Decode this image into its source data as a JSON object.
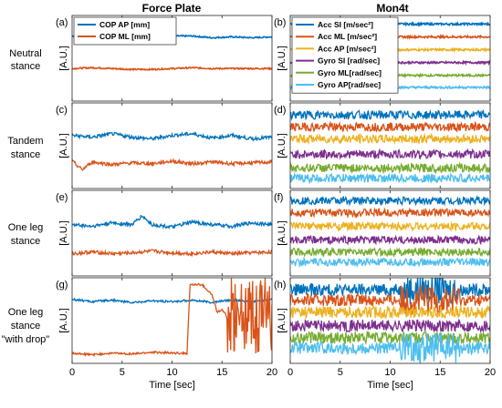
{
  "figure": {
    "col_titles": [
      "Force Plate",
      "Mon4t"
    ],
    "row_labels": [
      [
        "Neutral",
        "stance"
      ],
      [
        "Tandem",
        "stance"
      ],
      [
        "One leg",
        "stance"
      ],
      [
        "One leg",
        "stance",
        "\"with drop\""
      ]
    ],
    "panel_letters": [
      "(a)",
      "(b)",
      "(c)",
      "(d)",
      "(e)",
      "(f)",
      "(g)",
      "(h)"
    ],
    "ylabel": "[A.U.]",
    "xlabel": "Time [sec]",
    "xticks": [
      "0",
      "5",
      "10",
      "15",
      "20"
    ]
  },
  "colors": {
    "blue": "#0072BD",
    "orange": "#D95319",
    "yellow": "#EDB120",
    "purple": "#7E2F8E",
    "green": "#77AC30",
    "cyan": "#4DBEEE"
  },
  "chart_data": [
    {
      "type": "line",
      "panel": "(a)",
      "xlim": [
        0,
        20
      ],
      "xlabel": "",
      "ylabel": "[A.U.]",
      "legend_position": "top-left",
      "series": [
        {
          "name": "COP AP [mm]",
          "color": "#0072BD",
          "x": [
            0,
            2,
            4,
            6,
            8,
            10,
            12,
            14,
            16,
            18,
            20
          ],
          "y": [
            0.76,
            0.75,
            0.76,
            0.74,
            0.75,
            0.76,
            0.76,
            0.74,
            0.75,
            0.74,
            0.75
          ]
        },
        {
          "name": "COP ML [mm]",
          "color": "#D95319",
          "x": [
            0,
            2,
            4,
            6,
            8,
            10,
            12,
            14,
            16,
            18,
            20
          ],
          "y": [
            0.38,
            0.39,
            0.38,
            0.37,
            0.37,
            0.38,
            0.39,
            0.38,
            0.38,
            0.38,
            0.38
          ]
        }
      ]
    },
    {
      "type": "line",
      "panel": "(b)",
      "xlim": [
        0,
        20
      ],
      "xlabel": "",
      "ylabel": "[A.U.]",
      "legend_position": "top-left",
      "series": [
        {
          "name": "Acc SI [m/sec²]",
          "color": "#0072BD",
          "x": [
            0,
            20
          ],
          "y": [
            0.9,
            0.9
          ]
        },
        {
          "name": "Acc ML [m/sec²]",
          "color": "#D95319",
          "x": [
            0,
            20
          ],
          "y": [
            0.75,
            0.75
          ]
        },
        {
          "name": "Acc AP [m/sec²]",
          "color": "#EDB120",
          "x": [
            0,
            20
          ],
          "y": [
            0.6,
            0.6
          ]
        },
        {
          "name": "Gyro SI [rad/sec]",
          "color": "#7E2F8E",
          "x": [
            0,
            20
          ],
          "y": [
            0.45,
            0.45
          ]
        },
        {
          "name": "Gyro ML[rad/sec]",
          "color": "#77AC30",
          "x": [
            0,
            20
          ],
          "y": [
            0.3,
            0.3
          ]
        },
        {
          "name": "Gyro AP[rad/sec]",
          "color": "#4DBEEE",
          "x": [
            0,
            20
          ],
          "y": [
            0.16,
            0.16
          ]
        }
      ]
    },
    {
      "type": "line",
      "panel": "(c)",
      "xlim": [
        0,
        20
      ],
      "xlabel": "",
      "ylabel": "[A.U.]",
      "series": [
        {
          "color": "#0072BD",
          "x": [
            0,
            2,
            4,
            6,
            8,
            10,
            12,
            14,
            16,
            18,
            20
          ],
          "y": [
            0.62,
            0.6,
            0.64,
            0.6,
            0.58,
            0.62,
            0.64,
            0.59,
            0.62,
            0.58,
            0.6
          ]
        },
        {
          "color": "#D95319",
          "x": [
            0,
            1,
            2,
            4,
            6,
            8,
            10,
            12,
            14,
            16,
            18,
            20
          ],
          "y": [
            0.32,
            0.22,
            0.31,
            0.28,
            0.3,
            0.29,
            0.32,
            0.29,
            0.31,
            0.29,
            0.3,
            0.31
          ]
        }
      ]
    },
    {
      "type": "line",
      "panel": "(d)",
      "xlim": [
        0,
        20
      ],
      "xlabel": "",
      "ylabel": "[A.U.]",
      "series": [
        {
          "color": "#0072BD",
          "x": [
            0,
            20
          ],
          "y": [
            0.86,
            0.86
          ]
        },
        {
          "color": "#D95319",
          "x": [
            0,
            20
          ],
          "y": [
            0.72,
            0.72
          ]
        },
        {
          "color": "#EDB120",
          "x": [
            0,
            20
          ],
          "y": [
            0.58,
            0.58
          ]
        },
        {
          "color": "#7E2F8E",
          "x": [
            0,
            20
          ],
          "y": [
            0.4,
            0.4
          ]
        },
        {
          "color": "#77AC30",
          "x": [
            0,
            20
          ],
          "y": [
            0.24,
            0.24
          ]
        },
        {
          "color": "#4DBEEE",
          "x": [
            0,
            20
          ],
          "y": [
            0.12,
            0.12
          ]
        }
      ]
    },
    {
      "type": "line",
      "panel": "(e)",
      "xlim": [
        0,
        20
      ],
      "xlabel": "",
      "ylabel": "[A.U.]",
      "series": [
        {
          "color": "#0072BD",
          "x": [
            0,
            2,
            4,
            6,
            7,
            8,
            10,
            12,
            14,
            16,
            18,
            20
          ],
          "y": [
            0.6,
            0.58,
            0.62,
            0.6,
            0.7,
            0.6,
            0.57,
            0.63,
            0.6,
            0.58,
            0.62,
            0.6
          ]
        },
        {
          "color": "#D95319",
          "x": [
            0,
            2,
            4,
            6,
            8,
            10,
            12,
            14,
            16,
            18,
            20
          ],
          "y": [
            0.26,
            0.28,
            0.26,
            0.27,
            0.29,
            0.27,
            0.26,
            0.28,
            0.26,
            0.27,
            0.28
          ]
        }
      ]
    },
    {
      "type": "line",
      "panel": "(f)",
      "xlim": [
        0,
        20
      ],
      "xlabel": "",
      "ylabel": "[A.U.]",
      "series": [
        {
          "color": "#0072BD",
          "x": [
            0,
            20
          ],
          "y": [
            0.88,
            0.88
          ]
        },
        {
          "color": "#D95319",
          "x": [
            0,
            20
          ],
          "y": [
            0.74,
            0.74
          ]
        },
        {
          "color": "#EDB120",
          "x": [
            0,
            20
          ],
          "y": [
            0.58,
            0.58
          ]
        },
        {
          "color": "#7E2F8E",
          "x": [
            0,
            20
          ],
          "y": [
            0.42,
            0.42
          ]
        },
        {
          "color": "#77AC30",
          "x": [
            0,
            20
          ],
          "y": [
            0.28,
            0.28
          ]
        },
        {
          "color": "#4DBEEE",
          "x": [
            0,
            20
          ],
          "y": [
            0.16,
            0.16
          ]
        }
      ]
    },
    {
      "type": "line",
      "panel": "(g)",
      "xlim": [
        0,
        20
      ],
      "xlabel": "Time [sec]",
      "ylabel": "[A.U.]",
      "series": [
        {
          "color": "#0072BD",
          "x": [
            0,
            2,
            4,
            6,
            8,
            10,
            12,
            14,
            15,
            16,
            18,
            20
          ],
          "y": [
            0.75,
            0.72,
            0.74,
            0.71,
            0.73,
            0.72,
            0.74,
            0.71,
            0.73,
            0.74,
            0.72,
            0.75
          ]
        },
        {
          "color": "#D95319",
          "x": [
            0,
            2,
            4,
            6,
            8,
            10,
            11.5,
            11.8,
            13,
            14,
            14.5,
            15,
            15.3,
            16,
            17,
            18,
            19,
            20
          ],
          "y": [
            0.12,
            0.1,
            0.12,
            0.11,
            0.13,
            0.12,
            0.12,
            0.92,
            0.92,
            0.8,
            0.6,
            0.62,
            0.6,
            0.3,
            0.8,
            0.2,
            0.95,
            0.4
          ]
        }
      ]
    },
    {
      "type": "line",
      "panel": "(h)",
      "xlim": [
        0,
        20
      ],
      "xlabel": "Time [sec]",
      "ylabel": "[A.U.]",
      "series": [
        {
          "color": "#0072BD",
          "x": [
            0,
            20
          ],
          "y": [
            0.86,
            0.86
          ]
        },
        {
          "color": "#D95319",
          "x": [
            0,
            20
          ],
          "y": [
            0.74,
            0.74
          ]
        },
        {
          "color": "#EDB120",
          "x": [
            0,
            20
          ],
          "y": [
            0.6,
            0.6
          ]
        },
        {
          "color": "#7E2F8E",
          "x": [
            0,
            20
          ],
          "y": [
            0.44,
            0.44
          ]
        },
        {
          "color": "#77AC30",
          "x": [
            0,
            20
          ],
          "y": [
            0.3,
            0.3
          ]
        },
        {
          "color": "#4DBEEE",
          "x": [
            0,
            20
          ],
          "y": [
            0.18,
            0.18
          ]
        }
      ]
    }
  ]
}
